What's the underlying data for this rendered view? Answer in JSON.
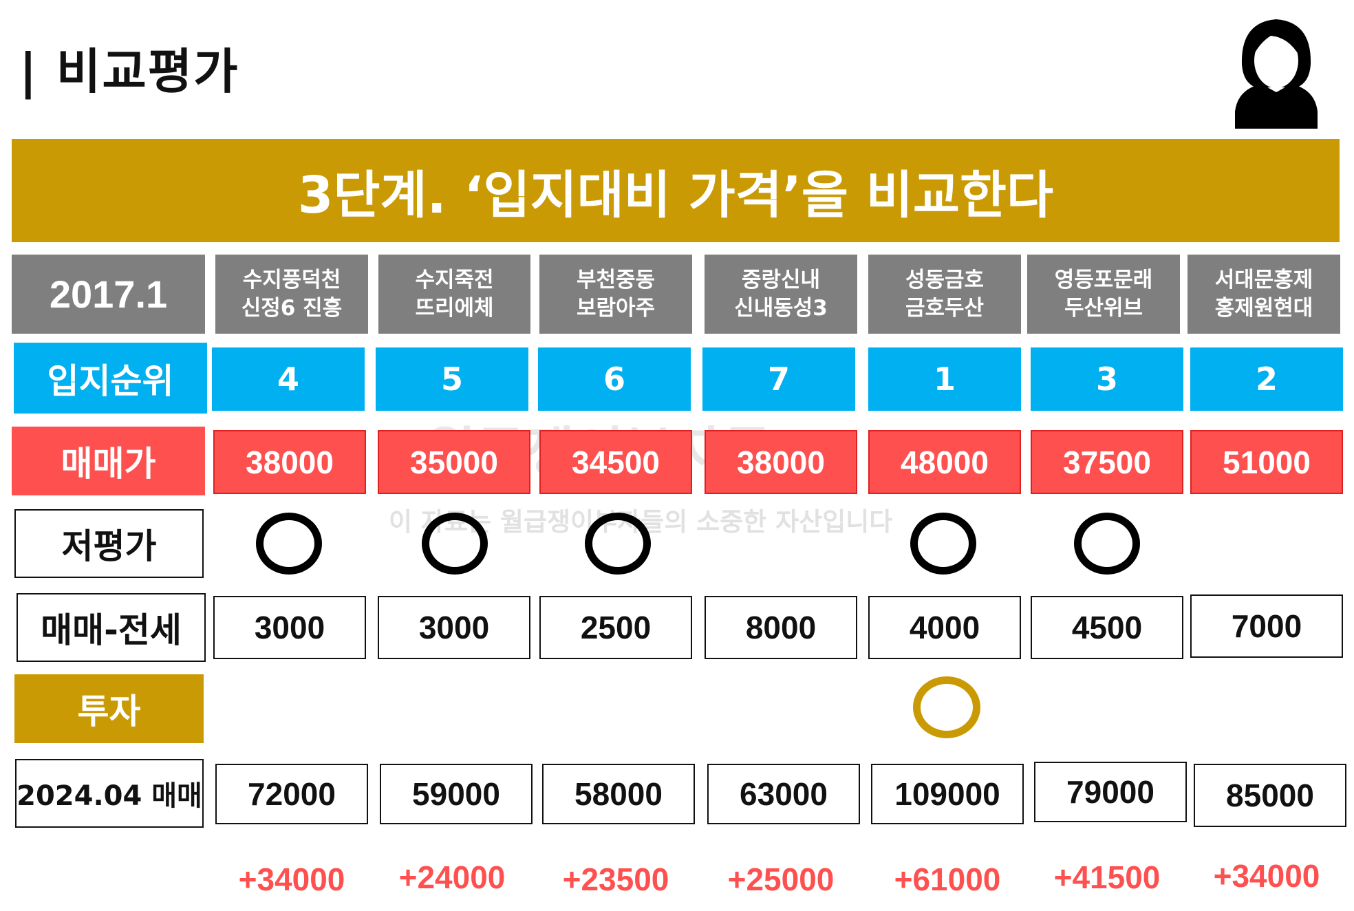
{
  "page_title": "| 비교평가",
  "banner": "3단계. ‘입지대비 가격’을 비교한다",
  "icon": "user-avatar-icon",
  "colors": {
    "gold": "#C99A03",
    "gray_header": "#7F7F7F",
    "blue": "#00B0F0",
    "red": "#FF5050"
  },
  "row_labels": {
    "date": "2017.1",
    "rank": "입지순위",
    "price": "매매가",
    "undervalued": "저평가",
    "gap": "매매-전세",
    "invest": "투자",
    "price_2024": "2024.04 매매"
  },
  "columns": [
    {
      "line1": "수지풍덕천",
      "line2": "신정6 진흥",
      "rank": "4",
      "price": "38000",
      "undervalued": true,
      "gap": "3000",
      "invest": false,
      "price_2024": "72000",
      "diff": "+34000"
    },
    {
      "line1": "수지죽전",
      "line2": "뜨리에체",
      "rank": "5",
      "price": "35000",
      "undervalued": true,
      "gap": "3000",
      "invest": false,
      "price_2024": "59000",
      "diff": "+24000"
    },
    {
      "line1": "부천중동",
      "line2": "보람아주",
      "rank": "6",
      "price": "34500",
      "undervalued": true,
      "gap": "2500",
      "invest": false,
      "price_2024": "58000",
      "diff": "+23500"
    },
    {
      "line1": "중랑신내",
      "line2": "신내동성3",
      "rank": "7",
      "price": "38000",
      "undervalued": false,
      "gap": "8000",
      "invest": false,
      "price_2024": "63000",
      "diff": "+25000"
    },
    {
      "line1": "성동금호",
      "line2": "금호두산",
      "rank": "1",
      "price": "48000",
      "undervalued": true,
      "gap": "4000",
      "invest": true,
      "price_2024": "109000",
      "diff": "+61000"
    },
    {
      "line1": "영등포문래",
      "line2": "두산위브",
      "rank": "3",
      "price": "37500",
      "undervalued": true,
      "gap": "4500",
      "invest": false,
      "price_2024": "79000",
      "diff": "+41500"
    },
    {
      "line1": "서대문홍제",
      "line2": "홍제원현대",
      "rank": "2",
      "price": "51000",
      "undervalued": false,
      "gap": "7000",
      "invest": false,
      "price_2024": "85000",
      "diff": "+34000"
    }
  ],
  "watermark": {
    "line1": "월급쟁이부자들",
    "line2": "이 자료는 월급쟁이부자들의 소중한 자산입니다"
  }
}
